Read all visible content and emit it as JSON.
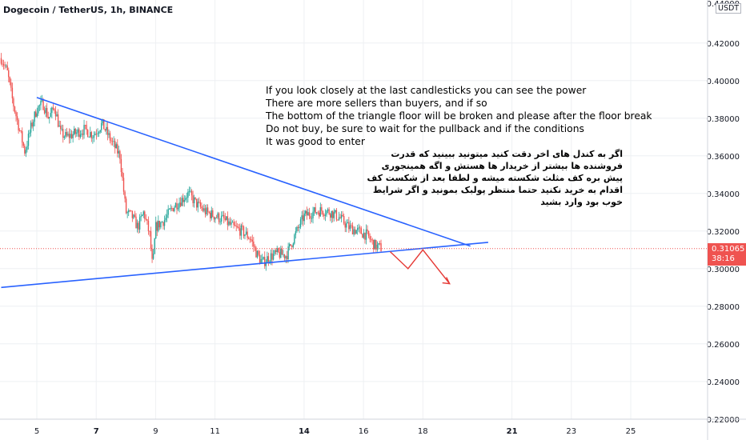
{
  "header": {
    "symbol_title": "Dogecoin / TetherUS, 1h, BINANCE"
  },
  "price_scale": {
    "unit": "USDT",
    "top_partial_label": "0.44000"
  },
  "last_price": {
    "value": "0.31065",
    "countdown": "38:16",
    "color": "#ef5350"
  },
  "annotations": {
    "english": [
      "If you look closely at the last candlesticks you can see the power",
      "There are more sellers than buyers, and if so",
      "The bottom of the triangle floor will be broken and please after the floor break",
      "Do not buy, be sure to wait for the pullback and if the conditions",
      "It was good to enter"
    ],
    "persian": [
      "اگر به کندل های اخر دقت کنید میتونید ببینید که قدرت",
      "فروشنده ها بیشتر از خریدار ها هستش و اگه همینجوری",
      "پیش بره کف مثلث شکسته میشه و لطفا بعد از شکست کف",
      "اقدام به خرید نکنید حتما منتظر پولبک بمونید و اگر شرایط",
      "خوب بود وارد بشید"
    ]
  },
  "colors": {
    "up": "#26a69a",
    "down": "#ef5350",
    "trendline": "#2962ff",
    "arrow": "#e53935",
    "grid": "#eef0f3"
  },
  "chart_data": {
    "type": "candlestick",
    "title": "Dogecoin / TetherUS, 1h, BINANCE",
    "y_ticks": [
      "0.42000",
      "0.40000",
      "0.38000",
      "0.36000",
      "0.34000",
      "0.32000",
      "0.30000",
      "0.28000",
      "0.26000",
      "0.24000",
      "0.22000"
    ],
    "ylim": [
      0.22,
      0.44
    ],
    "x_ticks": [
      "5",
      "7",
      "9",
      "11",
      "14",
      "16",
      "18",
      "21",
      "23",
      "25"
    ],
    "x_tick_days": [
      5,
      7,
      9,
      11,
      14,
      16,
      18,
      21,
      23,
      25
    ],
    "xlim_days": [
      3.8,
      26.4
    ],
    "close_path": [
      [
        3.8,
        0.412
      ],
      [
        4.0,
        0.405
      ],
      [
        4.2,
        0.388
      ],
      [
        4.4,
        0.375
      ],
      [
        4.6,
        0.362
      ],
      [
        4.8,
        0.375
      ],
      [
        5.0,
        0.385
      ],
      [
        5.2,
        0.388
      ],
      [
        5.4,
        0.38
      ],
      [
        5.6,
        0.386
      ],
      [
        5.8,
        0.372
      ],
      [
        6.0,
        0.37
      ],
      [
        6.3,
        0.372
      ],
      [
        6.6,
        0.374
      ],
      [
        6.9,
        0.371
      ],
      [
        7.2,
        0.377
      ],
      [
        7.5,
        0.368
      ],
      [
        7.8,
        0.36
      ],
      [
        8.0,
        0.33
      ],
      [
        8.2,
        0.328
      ],
      [
        8.4,
        0.322
      ],
      [
        8.6,
        0.33
      ],
      [
        8.8,
        0.318
      ],
      [
        8.9,
        0.3
      ],
      [
        9.0,
        0.322
      ],
      [
        9.3,
        0.326
      ],
      [
        9.6,
        0.333
      ],
      [
        9.9,
        0.337
      ],
      [
        10.1,
        0.34
      ],
      [
        10.4,
        0.334
      ],
      [
        10.7,
        0.33
      ],
      [
        11.0,
        0.328
      ],
      [
        11.3,
        0.326
      ],
      [
        11.6,
        0.322
      ],
      [
        11.9,
        0.32
      ],
      [
        12.2,
        0.316
      ],
      [
        12.4,
        0.308
      ],
      [
        12.6,
        0.303
      ],
      [
        12.8,
        0.306
      ],
      [
        13.1,
        0.308
      ],
      [
        13.4,
        0.307
      ],
      [
        13.7,
        0.318
      ],
      [
        14.0,
        0.328
      ],
      [
        14.3,
        0.33
      ],
      [
        14.6,
        0.331
      ],
      [
        14.9,
        0.33
      ],
      [
        15.2,
        0.327
      ],
      [
        15.5,
        0.322
      ],
      [
        15.8,
        0.32
      ],
      [
        16.1,
        0.318
      ],
      [
        16.4,
        0.312
      ],
      [
        16.6,
        0.311
      ]
    ],
    "trendlines": [
      {
        "name": "upper",
        "points": [
          [
            5.0,
            0.391
          ],
          [
            19.6,
            0.312
          ]
        ]
      },
      {
        "name": "lower",
        "points": [
          [
            3.8,
            0.29
          ],
          [
            20.2,
            0.314
          ]
        ]
      }
    ],
    "projection_arrow": [
      [
        16.9,
        0.309
      ],
      [
        17.5,
        0.3
      ],
      [
        18.0,
        0.31
      ],
      [
        18.9,
        0.292
      ]
    ],
    "last_price": 0.31065
  }
}
